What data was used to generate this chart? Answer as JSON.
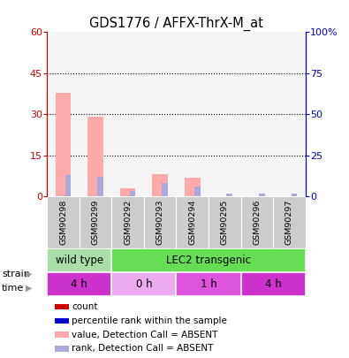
{
  "title": "GDS1776 / AFFX-ThrX-M_at",
  "samples": [
    "GSM90298",
    "GSM90299",
    "GSM90292",
    "GSM90293",
    "GSM90294",
    "GSM90295",
    "GSM90296",
    "GSM90297"
  ],
  "count_present": [
    0,
    0,
    0,
    0,
    0,
    0,
    0,
    0
  ],
  "rank_present": [
    0,
    0,
    0,
    0,
    0,
    0,
    0,
    0
  ],
  "count_absent": [
    38,
    29,
    3,
    8,
    7,
    0,
    0,
    0
  ],
  "rank_absent": [
    13,
    12,
    3.5,
    8,
    6,
    1.5,
    1.5,
    1.5
  ],
  "ylim_left": [
    0,
    60
  ],
  "ylim_right": [
    0,
    100
  ],
  "yticks_left": [
    0,
    15,
    30,
    45,
    60
  ],
  "yticks_right": [
    0,
    25,
    50,
    75,
    100
  ],
  "ytick_labels_left": [
    "0",
    "15",
    "30",
    "45",
    "60"
  ],
  "ytick_labels_right": [
    "0",
    "25",
    "50",
    "75",
    "100%"
  ],
  "strain_groups": [
    {
      "label": "wild type",
      "start": 0,
      "end": 2,
      "color": "#aaddaa"
    },
    {
      "label": "LEC2 transgenic",
      "start": 2,
      "end": 8,
      "color": "#66dd55"
    }
  ],
  "time_groups": [
    {
      "label": "4 h",
      "start": 0,
      "end": 2,
      "color": "#cc33cc"
    },
    {
      "label": "0 h",
      "start": 2,
      "end": 4,
      "color": "#eeaaee"
    },
    {
      "label": "1 h",
      "start": 4,
      "end": 6,
      "color": "#dd55dd"
    },
    {
      "label": "4 h",
      "start": 6,
      "end": 8,
      "color": "#cc33cc"
    }
  ],
  "bar_width": 0.3,
  "color_count_present": "#cc0000",
  "color_rank_present": "#0000cc",
  "color_count_absent": "#ffaaaa",
  "color_rank_absent": "#aaaadd",
  "color_left_axis": "#cc0000",
  "color_right_axis": "#0000cc",
  "legend_entries": [
    {
      "label": "count",
      "color": "#cc0000"
    },
    {
      "label": "percentile rank within the sample",
      "color": "#0000cc"
    },
    {
      "label": "value, Detection Call = ABSENT",
      "color": "#ffaaaa"
    },
    {
      "label": "rank, Detection Call = ABSENT",
      "color": "#aaaadd"
    }
  ],
  "grid_yticks": [
    15,
    30,
    45
  ],
  "col_bg_even": "#d8d8d8",
  "col_bg_odd": "#c8c8c8"
}
